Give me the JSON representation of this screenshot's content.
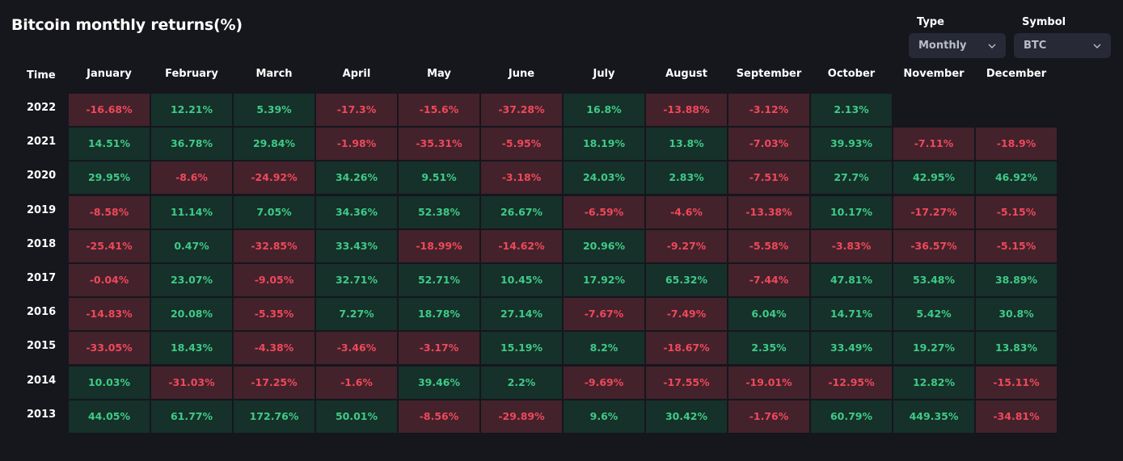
{
  "title": "Bitcoin monthly returns(%)",
  "filters": {
    "type": {
      "label": "Type",
      "value": "Monthly"
    },
    "symbol": {
      "label": "Symbol",
      "value": "BTC"
    }
  },
  "table": {
    "time_label": "Time",
    "months": [
      "January",
      "February",
      "March",
      "April",
      "May",
      "June",
      "July",
      "August",
      "September",
      "October",
      "November",
      "December"
    ],
    "rows": [
      {
        "year": "2022",
        "values": [
          "-16.68%",
          "12.21%",
          "5.39%",
          "-17.3%",
          "-15.6%",
          "-37.28%",
          "16.8%",
          "-13.88%",
          "-3.12%",
          "2.13%",
          "",
          ""
        ]
      },
      {
        "year": "2021",
        "values": [
          "14.51%",
          "36.78%",
          "29.84%",
          "-1.98%",
          "-35.31%",
          "-5.95%",
          "18.19%",
          "13.8%",
          "-7.03%",
          "39.93%",
          "-7.11%",
          "-18.9%"
        ]
      },
      {
        "year": "2020",
        "values": [
          "29.95%",
          "-8.6%",
          "-24.92%",
          "34.26%",
          "9.51%",
          "-3.18%",
          "24.03%",
          "2.83%",
          "-7.51%",
          "27.7%",
          "42.95%",
          "46.92%"
        ]
      },
      {
        "year": "2019",
        "values": [
          "-8.58%",
          "11.14%",
          "7.05%",
          "34.36%",
          "52.38%",
          "26.67%",
          "-6.59%",
          "-4.6%",
          "-13.38%",
          "10.17%",
          "-17.27%",
          "-5.15%"
        ]
      },
      {
        "year": "2018",
        "values": [
          "-25.41%",
          "0.47%",
          "-32.85%",
          "33.43%",
          "-18.99%",
          "-14.62%",
          "20.96%",
          "-9.27%",
          "-5.58%",
          "-3.83%",
          "-36.57%",
          "-5.15%"
        ]
      },
      {
        "year": "2017",
        "values": [
          "-0.04%",
          "23.07%",
          "-9.05%",
          "32.71%",
          "52.71%",
          "10.45%",
          "17.92%",
          "65.32%",
          "-7.44%",
          "47.81%",
          "53.48%",
          "38.89%"
        ]
      },
      {
        "year": "2016",
        "values": [
          "-14.83%",
          "20.08%",
          "-5.35%",
          "7.27%",
          "18.78%",
          "27.14%",
          "-7.67%",
          "-7.49%",
          "6.04%",
          "14.71%",
          "5.42%",
          "30.8%"
        ]
      },
      {
        "year": "2015",
        "values": [
          "-33.05%",
          "18.43%",
          "-4.38%",
          "-3.46%",
          "-3.17%",
          "15.19%",
          "8.2%",
          "-18.67%",
          "2.35%",
          "33.49%",
          "19.27%",
          "13.83%"
        ]
      },
      {
        "year": "2014",
        "values": [
          "10.03%",
          "-31.03%",
          "-17.25%",
          "-1.6%",
          "39.46%",
          "2.2%",
          "-9.69%",
          "-17.55%",
          "-19.01%",
          "-12.95%",
          "12.82%",
          "-15.11%"
        ]
      },
      {
        "year": "2013",
        "values": [
          "44.05%",
          "61.77%",
          "172.76%",
          "50.01%",
          "-8.56%",
          "-29.89%",
          "9.6%",
          "30.42%",
          "-1.76%",
          "60.79%",
          "449.35%",
          "-34.81%"
        ]
      }
    ]
  },
  "colors": {
    "positive_bg": "#16302a",
    "positive_text": "#3ecb86",
    "negative_bg": "#43222b",
    "negative_text": "#f0485b"
  }
}
